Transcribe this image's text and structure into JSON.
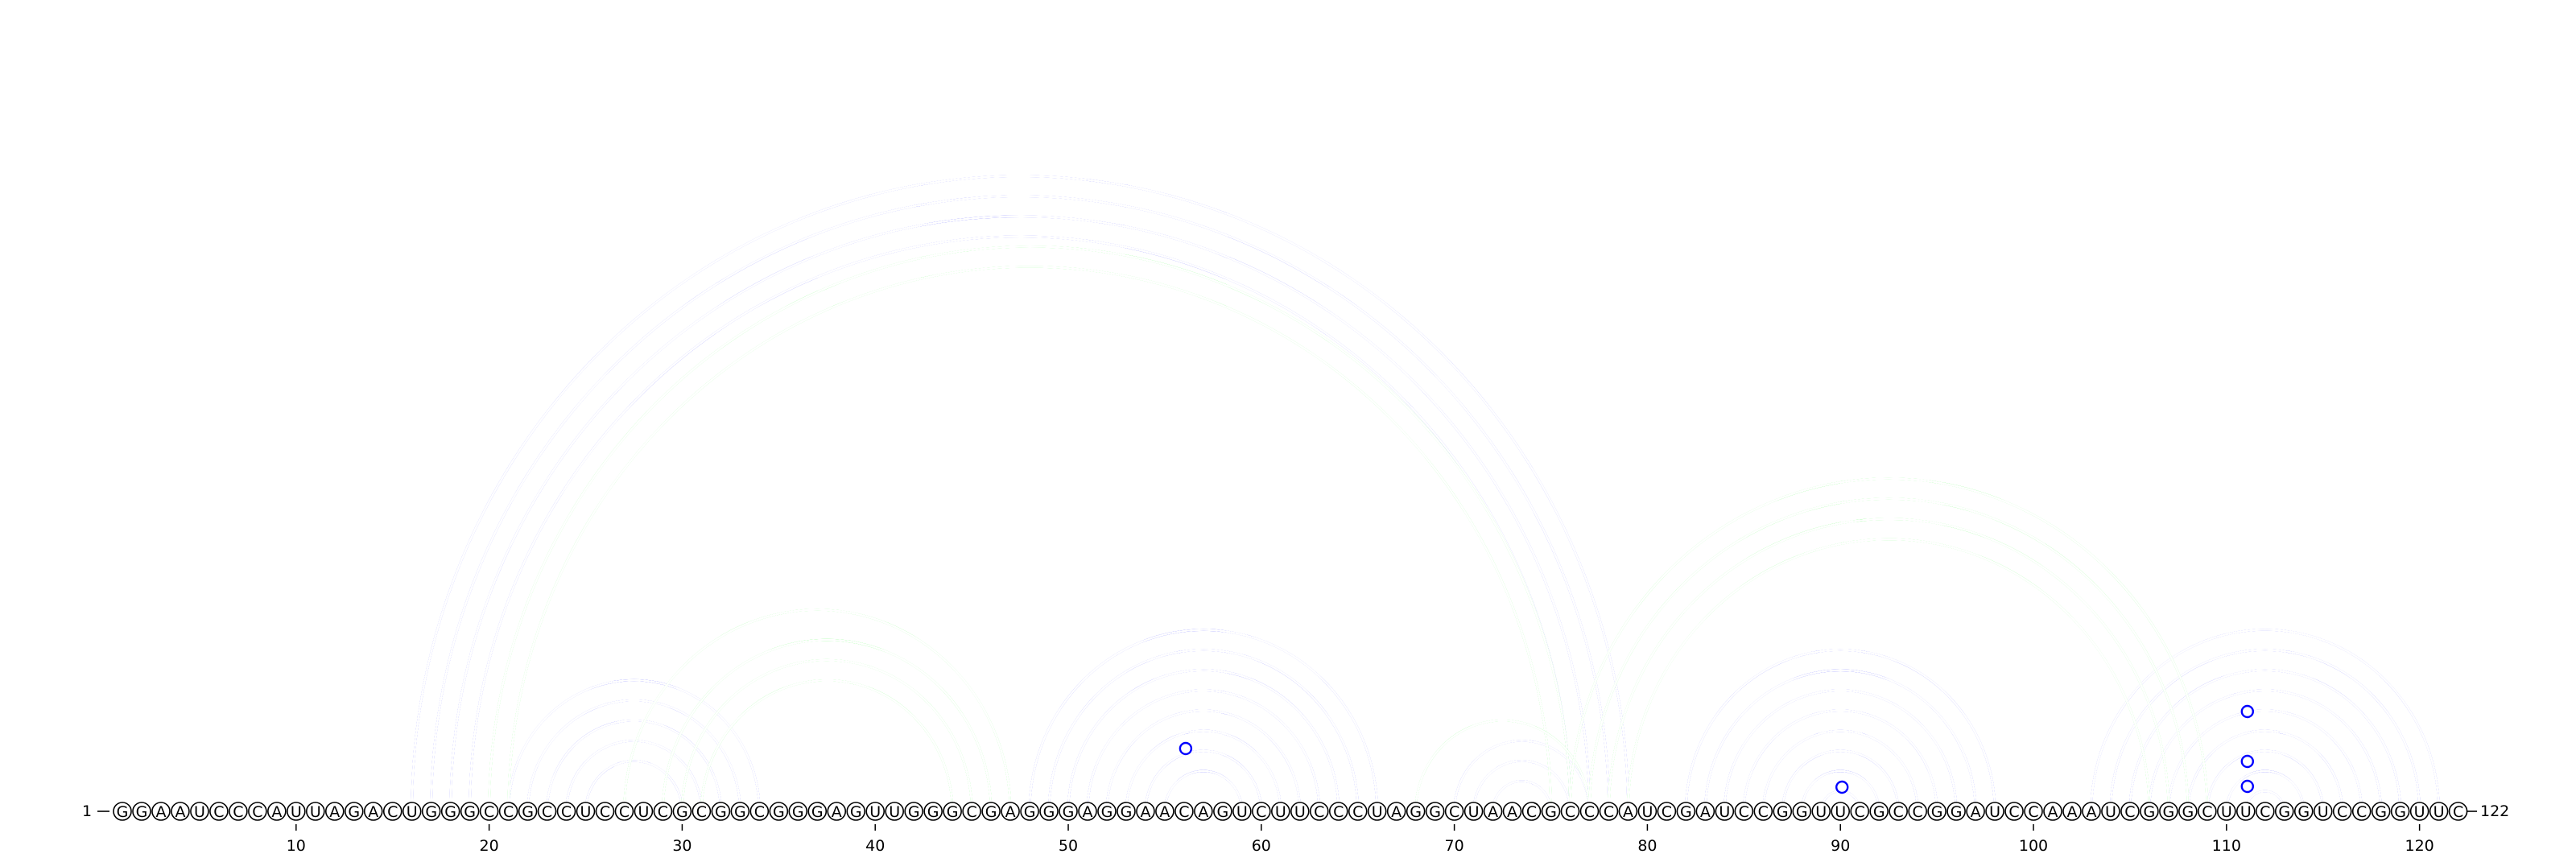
{
  "diagram": {
    "type": "rna-arc-diagram",
    "sequence": "GGAAUCCCAUUAGACUGGGCCGCCUCCUCGCGGCGGGAGUUGGGCGAGGGAGGAACAGUCUUCCCUAGGCUAACGCCCAUCGAUCCGGUUCGCCGGAUCCAAAUCGGGCUUCGGUCCGGUUC",
    "start_label": "1",
    "end_label": "122",
    "tick_labels": [
      "10",
      "20",
      "30",
      "40",
      "50",
      "60",
      "70",
      "80",
      "90",
      "100",
      "110",
      "120"
    ],
    "colors": {
      "primary_arcs": "#0000ff",
      "secondary_arcs": "#00ff00",
      "nucleotide_outline": "#000000",
      "background": "#ffffff"
    },
    "arc_sets": [
      {
        "color": "primary_arcs",
        "description": "pseudoknot-free structure",
        "pairs": [
          [
            16,
            79
          ],
          [
            17,
            78
          ],
          [
            18,
            77
          ],
          [
            19,
            76
          ],
          [
            21,
            34
          ],
          [
            22,
            33
          ],
          [
            23,
            32
          ],
          [
            24,
            31
          ],
          [
            25,
            30
          ],
          [
            48,
            66
          ],
          [
            49,
            65
          ],
          [
            50,
            64
          ],
          [
            51,
            63
          ],
          [
            52,
            62
          ],
          [
            53,
            61
          ],
          [
            54,
            60
          ],
          [
            55,
            59
          ],
          [
            70,
            77
          ],
          [
            71,
            76
          ],
          [
            72,
            75
          ],
          [
            82,
            98
          ],
          [
            83,
            97
          ],
          [
            84,
            96
          ],
          [
            85,
            95
          ],
          [
            86,
            94
          ],
          [
            87,
            93
          ],
          [
            88,
            92
          ],
          [
            89,
            91
          ],
          [
            90,
            90.5
          ],
          [
            103,
            121
          ],
          [
            104,
            120
          ],
          [
            105,
            119
          ],
          [
            106,
            118
          ],
          [
            107,
            117
          ],
          [
            108,
            116
          ],
          [
            109,
            115
          ],
          [
            110,
            114
          ],
          [
            111,
            113
          ]
        ]
      },
      {
        "color": "secondary_arcs",
        "description": "pseudoknotted helices",
        "pairs": [
          [
            20,
            76
          ],
          [
            21,
            75
          ],
          [
            27,
            47
          ],
          [
            29,
            46
          ],
          [
            30,
            45
          ],
          [
            31,
            44
          ],
          [
            68,
            77
          ],
          [
            76,
            109
          ],
          [
            77,
            108
          ],
          [
            78,
            107
          ],
          [
            79,
            106
          ]
        ]
      }
    ],
    "wobble_markers": [
      56,
      90,
      111,
      111,
      111
    ]
  }
}
